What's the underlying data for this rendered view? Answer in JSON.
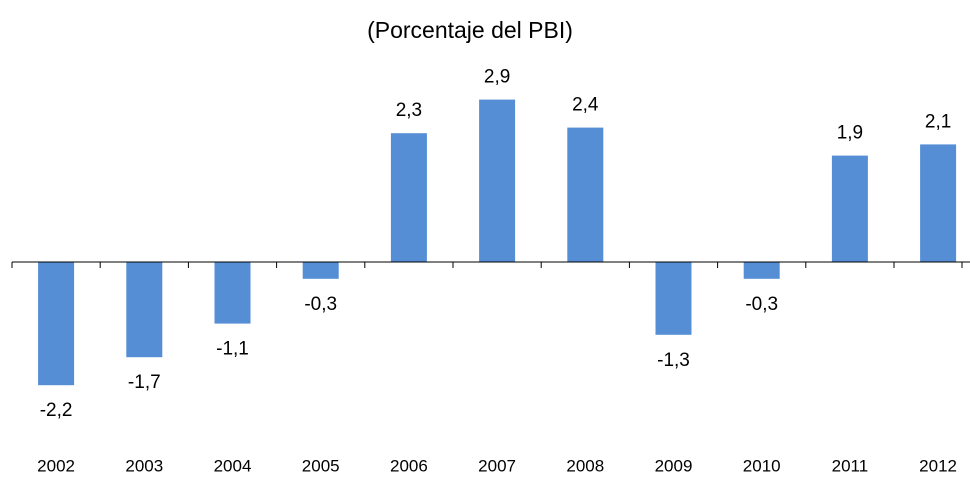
{
  "chart_data": {
    "type": "bar",
    "title": "(Porcentaje del PBI)",
    "categories": [
      "2002",
      "2003",
      "2004",
      "2005",
      "2006",
      "2007",
      "2008",
      "2009",
      "2010",
      "2011",
      "2012"
    ],
    "values": [
      -2.2,
      -1.7,
      -1.1,
      -0.3,
      2.3,
      2.9,
      2.4,
      -1.3,
      -0.3,
      1.9,
      2.1
    ],
    "value_labels": [
      "-2,2",
      "-1,7",
      "-1,1",
      "-0,3",
      "2,3",
      "2,9",
      "2,4",
      "-1,3",
      "-0,3",
      "1,9",
      "2,1"
    ],
    "color": "#558ed5",
    "ylim": [
      -3.5,
      3.5
    ]
  }
}
